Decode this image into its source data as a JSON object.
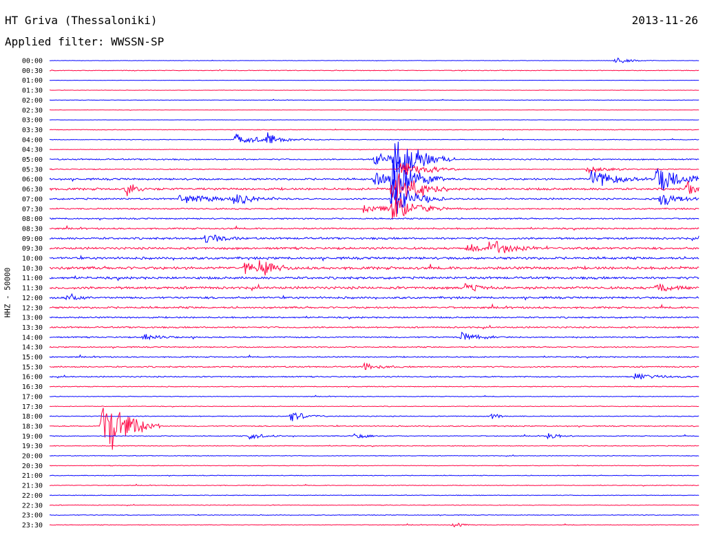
{
  "header": {
    "station": "HT Griva (Thessaloniki)",
    "date": "2013-11-26",
    "filter_label": "Applied filter:",
    "filter_name": "WWSSN-SP"
  },
  "chart_data": {
    "type": "line",
    "title": "HT Griva (Thessaloniki)",
    "ylabel": "HHZ - 50000",
    "categories": [
      "00:00",
      "00:30",
      "01:00",
      "01:30",
      "02:00",
      "02:30",
      "03:00",
      "03:30",
      "04:00",
      "04:30",
      "05:00",
      "05:30",
      "06:00",
      "06:30",
      "07:00",
      "07:30",
      "08:00",
      "08:30",
      "09:00",
      "09:30",
      "10:00",
      "10:30",
      "11:00",
      "11:30",
      "12:00",
      "12:30",
      "13:00",
      "13:30",
      "14:00",
      "14:30",
      "15:00",
      "15:30",
      "16:00",
      "16:30",
      "17:00",
      "17:30",
      "18:00",
      "18:30",
      "19:00",
      "19:30",
      "20:00",
      "20:30",
      "21:00",
      "21:30",
      "22:00",
      "22:30",
      "23:00",
      "23:30"
    ],
    "series_colors": [
      "#0000ff",
      "#ff0040"
    ],
    "noise_levels": [
      0.2,
      0.4,
      0.2,
      0.2,
      0.3,
      0.2,
      0.2,
      0.4,
      0.4,
      0.3,
      0.8,
      0.6,
      1.1,
      1.3,
      1.0,
      0.9,
      0.8,
      0.9,
      1.2,
      1.3,
      1.4,
      1.6,
      1.4,
      1.5,
      1.2,
      1.1,
      0.9,
      0.9,
      0.8,
      0.7,
      0.7,
      0.8,
      0.7,
      0.5,
      0.4,
      0.4,
      0.5,
      0.6,
      0.5,
      0.5,
      0.4,
      0.4,
      0.4,
      0.4,
      0.4,
      0.4,
      0.4,
      0.4
    ],
    "events": [
      {
        "row": 0,
        "minute": 26.1,
        "amplitude": 6,
        "duration": 0.6
      },
      {
        "row": 8,
        "minute": 8.5,
        "amplitude": 9,
        "duration": 1.5
      },
      {
        "row": 8,
        "minute": 10.0,
        "amplitude": 12,
        "duration": 0.4
      },
      {
        "row": 10,
        "minute": 15.0,
        "amplitude": 12,
        "duration": 1.2
      },
      {
        "row": 10,
        "minute": 15.9,
        "amplitude": 45,
        "duration": 0.9
      },
      {
        "row": 11,
        "minute": 16.2,
        "amplitude": 22,
        "duration": 0.9
      },
      {
        "row": 11,
        "minute": 24.8,
        "amplitude": 6,
        "duration": 0.8
      },
      {
        "row": 12,
        "minute": 15.0,
        "amplitude": 12,
        "duration": 1.0
      },
      {
        "row": 12,
        "minute": 15.8,
        "amplitude": 55,
        "duration": 0.8
      },
      {
        "row": 12,
        "minute": 25.0,
        "amplitude": 22,
        "duration": 0.8
      },
      {
        "row": 12,
        "minute": 28.0,
        "amplitude": 28,
        "duration": 1.0
      },
      {
        "row": 13,
        "minute": 3.5,
        "amplitude": 12,
        "duration": 0.4
      },
      {
        "row": 13,
        "minute": 15.8,
        "amplitude": 40,
        "duration": 0.8
      },
      {
        "row": 13,
        "minute": 29.4,
        "amplitude": 14,
        "duration": 0.5
      },
      {
        "row": 14,
        "minute": 6.0,
        "amplitude": 8,
        "duration": 1.5
      },
      {
        "row": 14,
        "minute": 8.5,
        "amplitude": 9,
        "duration": 0.8
      },
      {
        "row": 14,
        "minute": 15.8,
        "amplitude": 40,
        "duration": 0.8
      },
      {
        "row": 14,
        "minute": 28.2,
        "amplitude": 16,
        "duration": 0.6
      },
      {
        "row": 15,
        "minute": 15.8,
        "amplitude": 28,
        "duration": 0.8
      },
      {
        "row": 15,
        "minute": 14.5,
        "amplitude": 6,
        "duration": 1.8
      },
      {
        "row": 18,
        "minute": 7.2,
        "amplitude": 8,
        "duration": 0.7
      },
      {
        "row": 19,
        "minute": 20.3,
        "amplitude": 16,
        "duration": 0.8
      },
      {
        "row": 19,
        "minute": 19.3,
        "amplitude": 7,
        "duration": 0.6
      },
      {
        "row": 21,
        "minute": 9.0,
        "amplitude": 10,
        "duration": 0.8
      },
      {
        "row": 21,
        "minute": 9.7,
        "amplitude": 14,
        "duration": 0.5
      },
      {
        "row": 23,
        "minute": 28.0,
        "amplitude": 8,
        "duration": 0.8
      },
      {
        "row": 23,
        "minute": 19.2,
        "amplitude": 6,
        "duration": 0.6
      },
      {
        "row": 24,
        "minute": 0.8,
        "amplitude": 9,
        "duration": 0.5
      },
      {
        "row": 28,
        "minute": 4.3,
        "amplitude": 6,
        "duration": 0.7
      },
      {
        "row": 28,
        "minute": 19.0,
        "amplitude": 8,
        "duration": 0.8
      },
      {
        "row": 31,
        "minute": 14.5,
        "amplitude": 7,
        "duration": 0.6
      },
      {
        "row": 32,
        "minute": 27.0,
        "amplitude": 5,
        "duration": 1.2
      },
      {
        "row": 36,
        "minute": 11.1,
        "amplitude": 10,
        "duration": 0.6
      },
      {
        "row": 36,
        "minute": 20.4,
        "amplitude": 6,
        "duration": 0.3
      },
      {
        "row": 37,
        "minute": 2.4,
        "amplitude": 70,
        "duration": 0.9
      },
      {
        "row": 38,
        "minute": 9.2,
        "amplitude": 8,
        "duration": 0.5
      },
      {
        "row": 38,
        "minute": 14.1,
        "amplitude": 6,
        "duration": 0.4
      },
      {
        "row": 38,
        "minute": 23.0,
        "amplitude": 7,
        "duration": 0.4
      },
      {
        "row": 47,
        "minute": 18.5,
        "amplitude": 5,
        "duration": 0.5
      }
    ]
  }
}
